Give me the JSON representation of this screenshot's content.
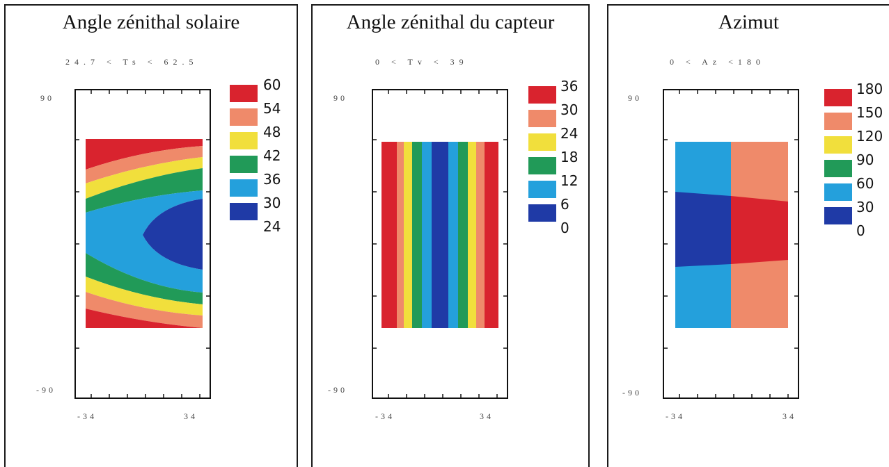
{
  "chart_data": [
    {
      "type": "heatmap",
      "title": "Angle zénithal solaire",
      "subtitle": "24.7 < Ts < 62.5",
      "x_ticks": [
        "-34",
        "34"
      ],
      "y_ticks": [
        "90",
        "-90"
      ],
      "legend_values": [
        "60",
        "54",
        "48",
        "42",
        "36",
        "30",
        "24"
      ],
      "legend_colors": [
        "#d9232e",
        "#ef8a6a",
        "#f1df3c",
        "#219a58",
        "#24a0dc",
        "#1f3aa6"
      ],
      "xlim": [
        -34,
        34
      ],
      "ylim": [
        -90,
        90
      ],
      "grid": false,
      "legend_position": "right"
    },
    {
      "type": "heatmap",
      "title": "Angle zénithal du capteur",
      "subtitle": "0 < Tv < 39",
      "x_ticks": [
        "-34",
        "34"
      ],
      "y_ticks": [
        "90",
        "-90"
      ],
      "legend_values": [
        "36",
        "30",
        "24",
        "18",
        "12",
        "6",
        "0"
      ],
      "legend_colors": [
        "#d9232e",
        "#ef8a6a",
        "#f1df3c",
        "#219a58",
        "#24a0dc",
        "#1f3aa6"
      ],
      "xlim": [
        -34,
        34
      ],
      "ylim": [
        -90,
        90
      ],
      "grid": false,
      "legend_position": "right"
    },
    {
      "type": "heatmap",
      "title": "Azimut",
      "subtitle": "0 < Az <180",
      "x_ticks": [
        "-34",
        "34"
      ],
      "y_ticks": [
        "90",
        "-90"
      ],
      "legend_values": [
        "180",
        "150",
        "120",
        "90",
        "60",
        "30",
        "0"
      ],
      "legend_colors": [
        "#d9232e",
        "#ef8a6a",
        "#f1df3c",
        "#219a58",
        "#24a0dc",
        "#1f3aa6"
      ],
      "xlim": [
        -34,
        34
      ],
      "ylim": [
        -90,
        90
      ],
      "grid": false,
      "legend_position": "right"
    }
  ]
}
